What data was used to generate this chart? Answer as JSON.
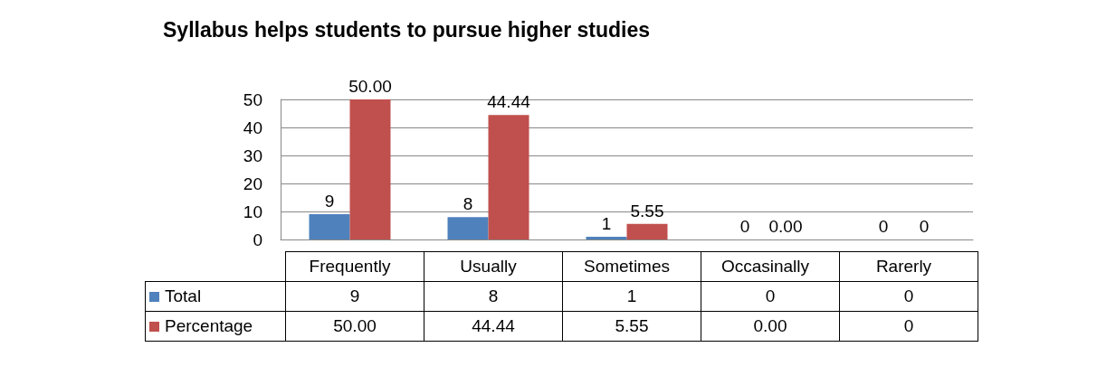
{
  "chart_data": {
    "type": "bar",
    "title": "Syllabus helps students to pursue higher studies",
    "categories": [
      "Frequently",
      "Usually",
      "Sometimes",
      "Occasinally",
      "Rarerly"
    ],
    "series": [
      {
        "name": "Total",
        "color": "#4f81bd",
        "values": [
          9,
          8,
          1,
          0,
          0
        ],
        "value_labels": [
          "9",
          "8",
          "1",
          "0",
          "0"
        ]
      },
      {
        "name": "Percentage",
        "color": "#c0504d",
        "values": [
          50.0,
          44.44,
          5.55,
          0.0,
          0
        ],
        "value_labels": [
          "50.00",
          "44.44",
          "5.55",
          "0.00",
          "0"
        ]
      }
    ],
    "ylim": [
      0,
      50
    ],
    "yticks": [
      0,
      10,
      20,
      30,
      40,
      50
    ],
    "grid": "y",
    "legend": "bottom"
  }
}
